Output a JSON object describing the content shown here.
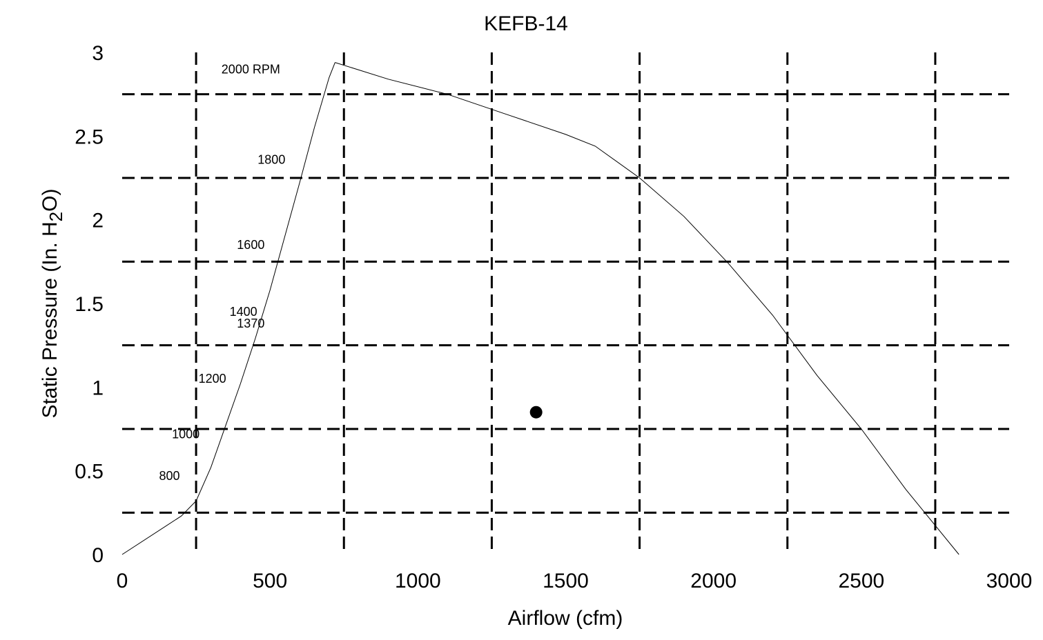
{
  "chart_data": {
    "type": "line",
    "title": "KEFB-14",
    "xlabel": "Airflow (cfm)",
    "ylabel": {
      "prefix": "Static Pressure (In. H",
      "subscript": "2",
      "suffix": "O)"
    },
    "xlim": [
      0,
      3000
    ],
    "ylim": [
      0,
      3
    ],
    "x_ticks": [
      "0",
      "500",
      "1000",
      "1500",
      "2000",
      "2500",
      "3000"
    ],
    "y_ticks": [
      "0",
      "0.5",
      "1",
      "1.5",
      "2",
      "2.5",
      "3"
    ],
    "grid": {
      "style": "dashed",
      "x_lines": [
        250,
        750,
        1250,
        1750,
        2250,
        2750
      ],
      "y_lines": [
        0.25,
        0.75,
        1.25,
        1.75,
        2.25,
        2.75
      ]
    },
    "system_curve": {
      "x": [
        0,
        200,
        250,
        300,
        350,
        400,
        450,
        500,
        550,
        600,
        650,
        700,
        720
      ],
      "y": [
        0,
        0.23,
        0.32,
        0.52,
        0.77,
        1.02,
        1.29,
        1.58,
        1.9,
        2.22,
        2.55,
        2.85,
        2.94
      ]
    },
    "fan_curve": {
      "x": [
        720,
        900,
        1100,
        1300,
        1500,
        1600,
        1750,
        1900,
        2050,
        2200,
        2350,
        2500,
        2650,
        2830
      ],
      "y": [
        2.94,
        2.84,
        2.75,
        2.63,
        2.51,
        2.44,
        2.25,
        2.02,
        1.74,
        1.43,
        1.07,
        0.75,
        0.39,
        0
      ]
    },
    "rpm_labels": [
      {
        "text": "2000 RPM",
        "x": 435,
        "y": 2.9
      },
      {
        "text": "1800",
        "x": 505,
        "y": 2.36
      },
      {
        "text": "1600",
        "x": 435,
        "y": 1.85
      },
      {
        "text": "1400",
        "x": 410,
        "y": 1.45
      },
      {
        "text": "1370",
        "x": 435,
        "y": 1.38
      },
      {
        "text": "1200",
        "x": 305,
        "y": 1.05
      },
      {
        "text": "1000",
        "x": 215,
        "y": 0.72
      },
      {
        "text": "800",
        "x": 160,
        "y": 0.47
      }
    ],
    "operating_point": {
      "x": 1400,
      "y": 0.85
    }
  }
}
